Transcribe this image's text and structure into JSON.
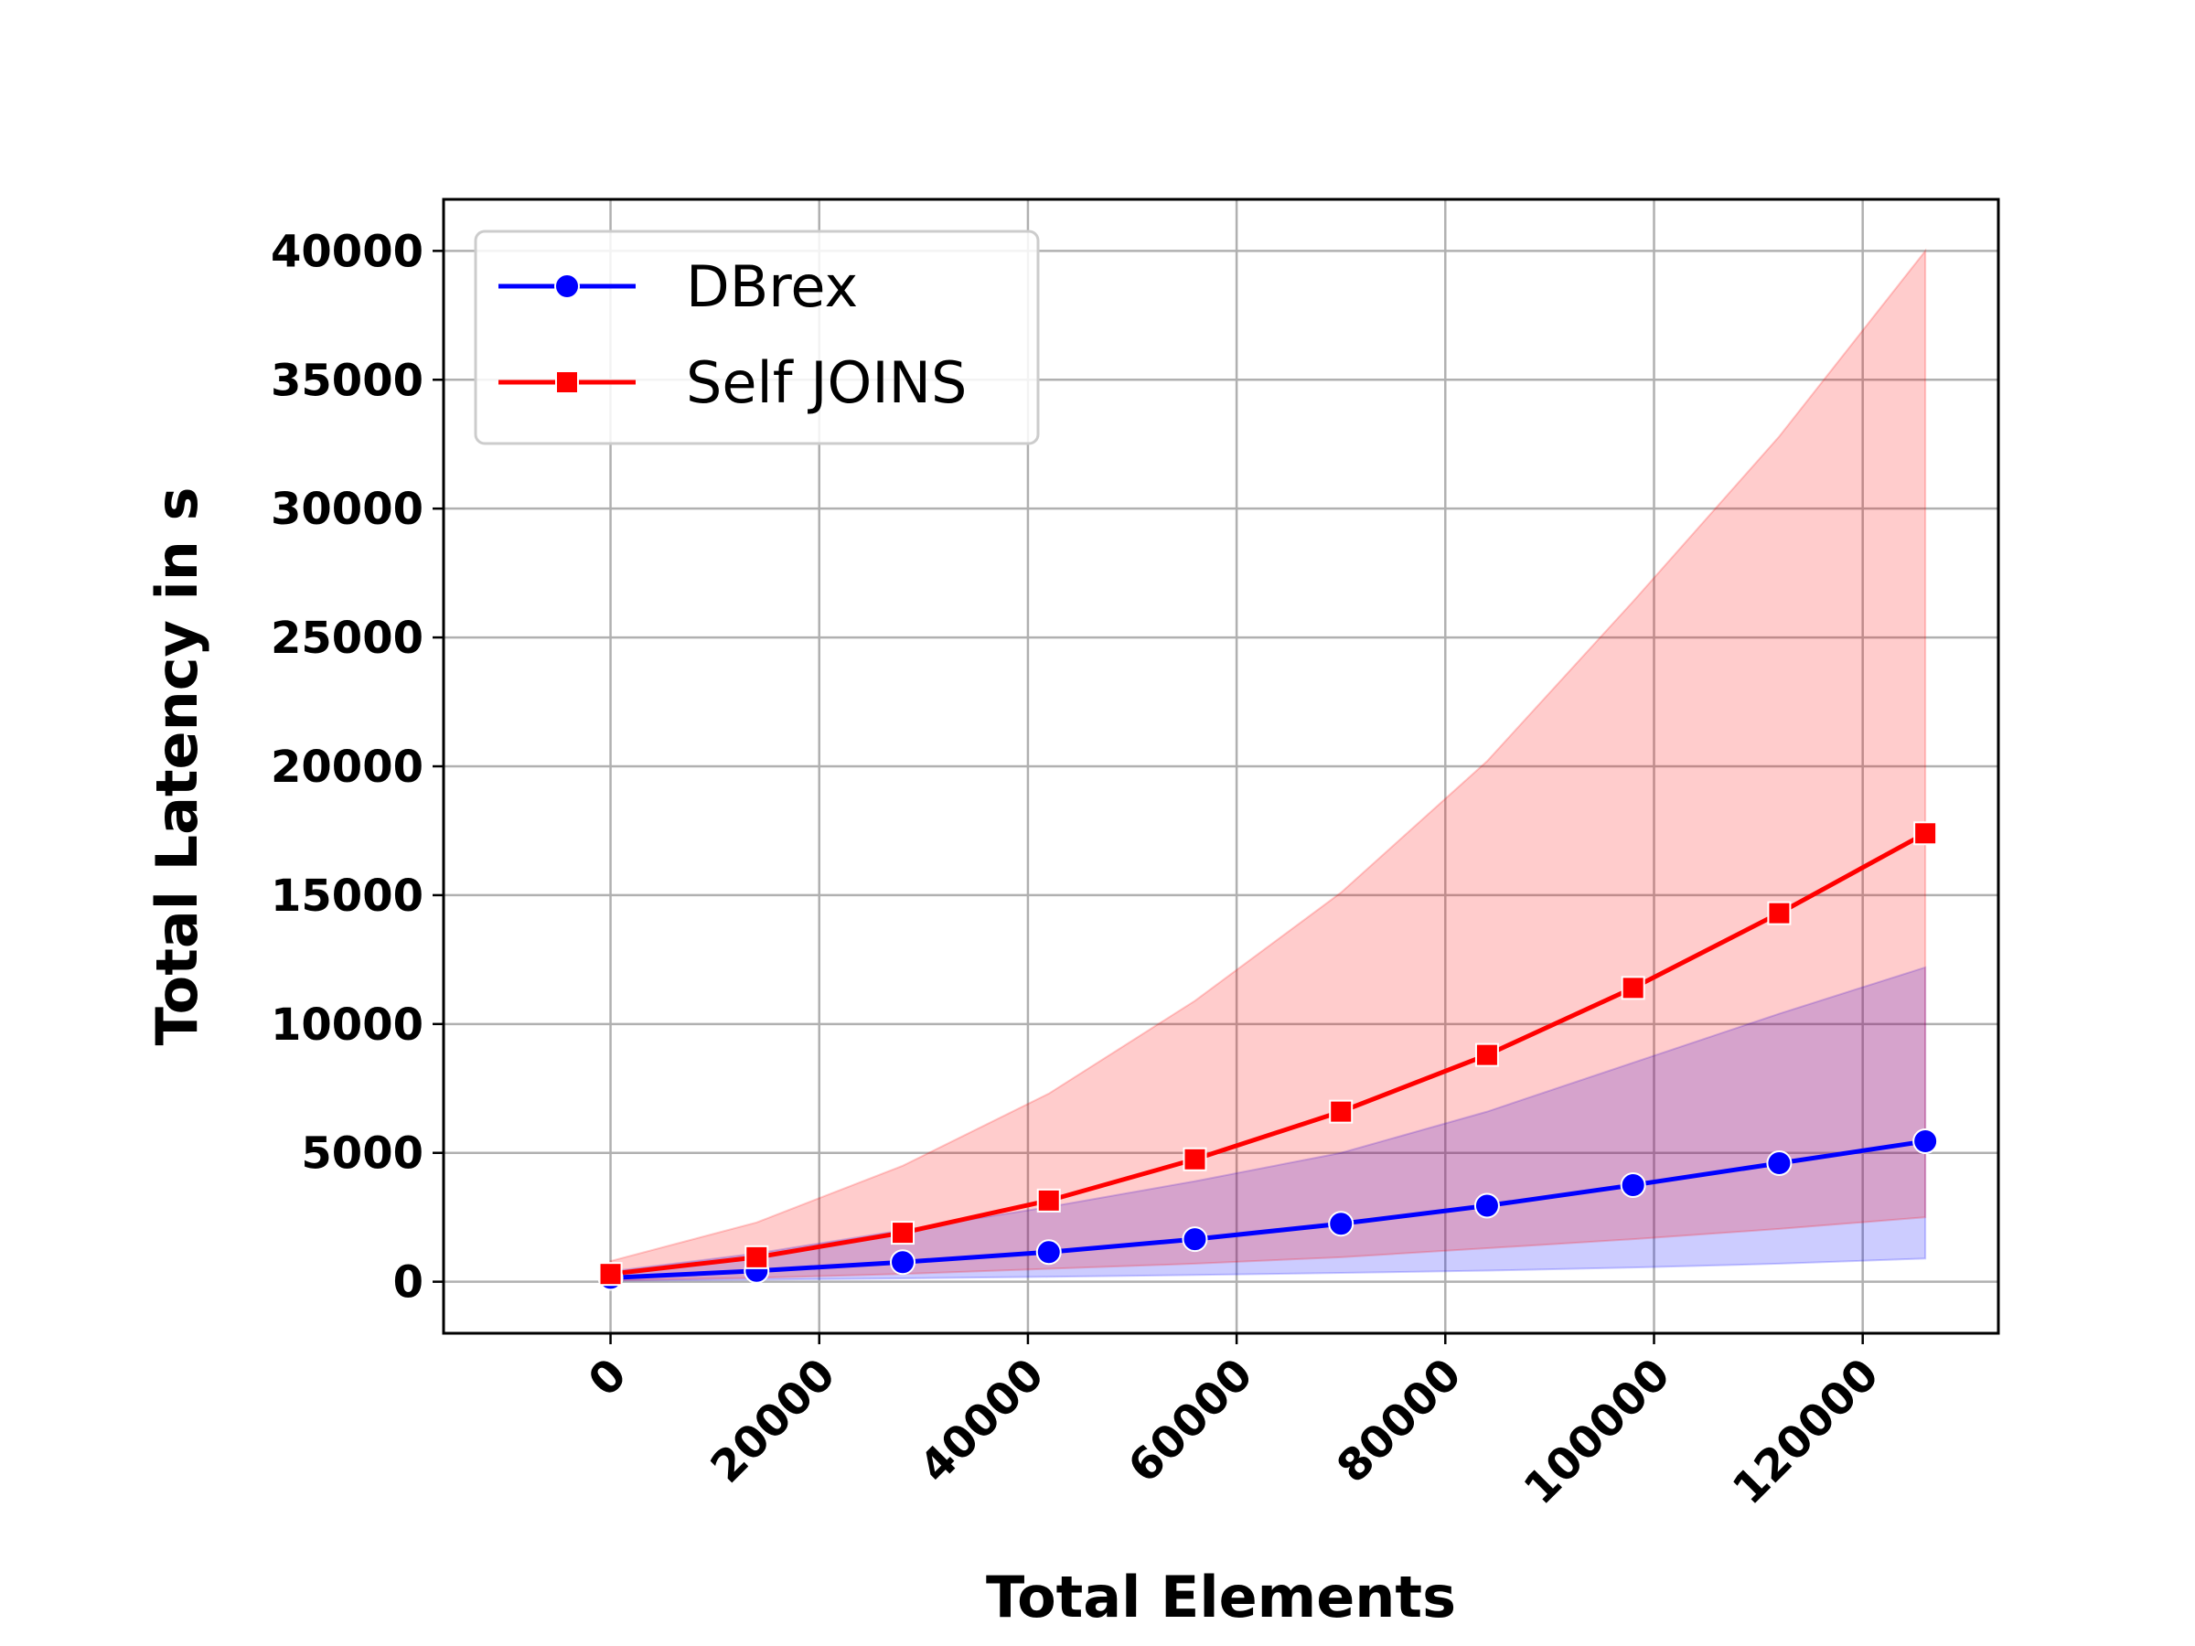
{
  "chart_data": {
    "type": "line",
    "xlabel": "Total Elements",
    "ylabel": "Total Latency in s",
    "xlim": [
      -16000,
      133000
    ],
    "ylim": [
      -2000,
      42000
    ],
    "x_ticks": [
      0,
      20000,
      40000,
      60000,
      80000,
      100000,
      120000
    ],
    "y_ticks": [
      0,
      5000,
      10000,
      15000,
      20000,
      25000,
      30000,
      35000,
      40000
    ],
    "grid": true,
    "legend_position": "top-left",
    "x": [
      0,
      14000,
      28000,
      42000,
      56000,
      70000,
      84000,
      98000,
      112000,
      126000
    ],
    "series": [
      {
        "name": "DBrex",
        "color": "#0000ff",
        "band_color": "rgba(0,0,255,0.2)",
        "marker": "circle",
        "values": [
          150,
          420,
          760,
          1150,
          1650,
          2250,
          2950,
          3750,
          4600,
          5450
        ],
        "band_lower": [
          40,
          80,
          130,
          190,
          260,
          340,
          430,
          550,
          700,
          900
        ],
        "band_upper": [
          400,
          1100,
          2000,
          2900,
          3900,
          5000,
          6600,
          8500,
          10400,
          12200
        ]
      },
      {
        "name": "Self JOINS",
        "color": "#ff0000",
        "band_color": "rgba(255,0,0,0.2)",
        "marker": "square",
        "values": [
          300,
          950,
          1900,
          3150,
          4750,
          6600,
          8800,
          11400,
          14300,
          17400
        ],
        "band_lower": [
          50,
          150,
          300,
          500,
          700,
          950,
          1300,
          1650,
          2050,
          2500
        ],
        "band_upper": [
          800,
          2300,
          4500,
          7300,
          10900,
          15100,
          20200,
          26400,
          32800,
          40000
        ]
      }
    ]
  }
}
